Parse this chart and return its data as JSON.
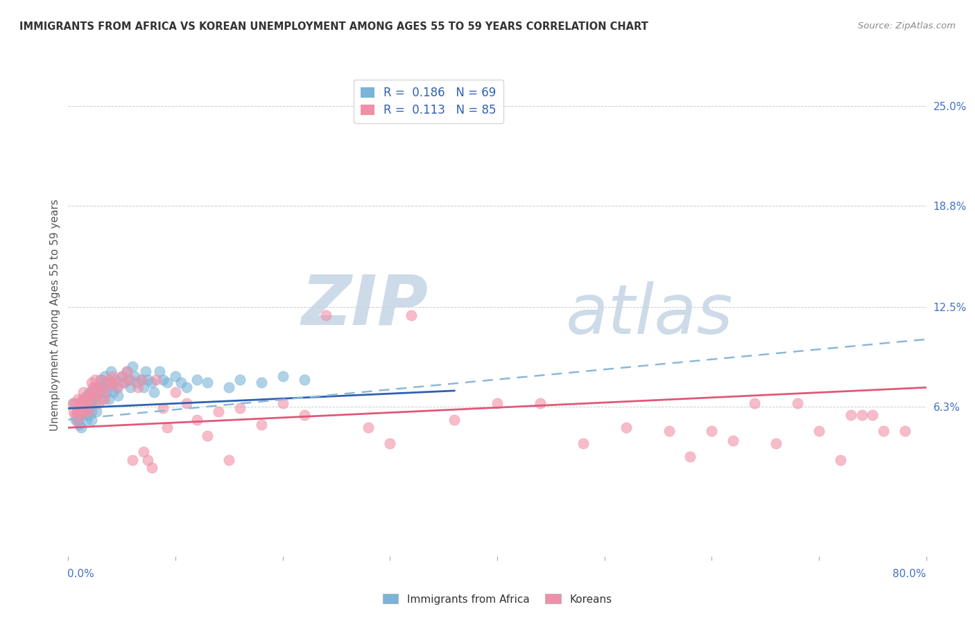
{
  "title": "IMMIGRANTS FROM AFRICA VS KOREAN UNEMPLOYMENT AMONG AGES 55 TO 59 YEARS CORRELATION CHART",
  "source": "Source: ZipAtlas.com",
  "ylabel": "Unemployment Among Ages 55 to 59 years",
  "ytick_labels": [
    "25.0%",
    "18.8%",
    "12.5%",
    "6.3%"
  ],
  "ytick_values": [
    0.25,
    0.188,
    0.125,
    0.063
  ],
  "xlim": [
    0.0,
    0.8
  ],
  "ylim": [
    -0.03,
    0.27
  ],
  "africa_R": 0.186,
  "africa_N": 69,
  "korean_R": 0.113,
  "korean_N": 85,
  "africa_scatter_color": "#7ab4d8",
  "korean_scatter_color": "#f090a8",
  "africa_line_color": "#3060b0",
  "korean_line_color": "#8ab8d8",
  "pink_line_color": "#e05878",
  "watermark_color": "#d0dce8",
  "legend_text_color": "#3060b0",
  "africa_x": [
    0.005,
    0.007,
    0.008,
    0.009,
    0.01,
    0.01,
    0.012,
    0.013,
    0.014,
    0.015,
    0.015,
    0.016,
    0.016,
    0.017,
    0.018,
    0.018,
    0.019,
    0.02,
    0.02,
    0.021,
    0.022,
    0.022,
    0.023,
    0.024,
    0.025,
    0.025,
    0.026,
    0.028,
    0.03,
    0.03,
    0.032,
    0.033,
    0.034,
    0.035,
    0.036,
    0.038,
    0.04,
    0.04,
    0.042,
    0.044,
    0.045,
    0.046,
    0.05,
    0.052,
    0.055,
    0.056,
    0.058,
    0.06,
    0.062,
    0.064,
    0.068,
    0.07,
    0.072,
    0.074,
    0.078,
    0.08,
    0.085,
    0.088,
    0.092,
    0.1,
    0.105,
    0.11,
    0.12,
    0.13,
    0.15,
    0.16,
    0.18,
    0.2,
    0.22
  ],
  "africa_y": [
    0.065,
    0.055,
    0.06,
    0.055,
    0.058,
    0.052,
    0.05,
    0.06,
    0.068,
    0.062,
    0.058,
    0.065,
    0.06,
    0.055,
    0.07,
    0.062,
    0.058,
    0.072,
    0.068,
    0.065,
    0.06,
    0.055,
    0.068,
    0.075,
    0.07,
    0.065,
    0.06,
    0.075,
    0.08,
    0.072,
    0.068,
    0.075,
    0.082,
    0.078,
    0.072,
    0.068,
    0.085,
    0.078,
    0.072,
    0.08,
    0.075,
    0.07,
    0.082,
    0.078,
    0.085,
    0.08,
    0.075,
    0.088,
    0.082,
    0.078,
    0.08,
    0.075,
    0.085,
    0.08,
    0.078,
    0.072,
    0.085,
    0.08,
    0.078,
    0.082,
    0.078,
    0.075,
    0.08,
    0.078,
    0.075,
    0.08,
    0.078,
    0.082,
    0.08
  ],
  "korean_x": [
    0.004,
    0.005,
    0.006,
    0.007,
    0.008,
    0.008,
    0.009,
    0.01,
    0.01,
    0.011,
    0.012,
    0.013,
    0.014,
    0.015,
    0.015,
    0.016,
    0.017,
    0.018,
    0.018,
    0.019,
    0.02,
    0.021,
    0.022,
    0.023,
    0.024,
    0.025,
    0.026,
    0.027,
    0.028,
    0.03,
    0.031,
    0.032,
    0.034,
    0.036,
    0.038,
    0.04,
    0.042,
    0.044,
    0.046,
    0.05,
    0.052,
    0.055,
    0.058,
    0.06,
    0.065,
    0.068,
    0.07,
    0.074,
    0.078,
    0.082,
    0.088,
    0.092,
    0.1,
    0.11,
    0.12,
    0.13,
    0.14,
    0.15,
    0.16,
    0.18,
    0.2,
    0.22,
    0.24,
    0.28,
    0.3,
    0.32,
    0.36,
    0.4,
    0.44,
    0.48,
    0.52,
    0.56,
    0.58,
    0.6,
    0.62,
    0.64,
    0.66,
    0.68,
    0.7,
    0.72,
    0.74,
    0.76,
    0.78,
    0.75,
    0.73
  ],
  "korean_y": [
    0.065,
    0.06,
    0.058,
    0.065,
    0.06,
    0.055,
    0.068,
    0.062,
    0.058,
    0.065,
    0.06,
    0.068,
    0.072,
    0.065,
    0.06,
    0.068,
    0.065,
    0.07,
    0.065,
    0.06,
    0.068,
    0.072,
    0.078,
    0.075,
    0.07,
    0.08,
    0.075,
    0.07,
    0.065,
    0.075,
    0.08,
    0.072,
    0.068,
    0.075,
    0.08,
    0.078,
    0.082,
    0.078,
    0.075,
    0.082,
    0.078,
    0.085,
    0.08,
    0.03,
    0.075,
    0.08,
    0.035,
    0.03,
    0.025,
    0.08,
    0.062,
    0.05,
    0.072,
    0.065,
    0.055,
    0.045,
    0.06,
    0.03,
    0.062,
    0.052,
    0.065,
    0.058,
    0.12,
    0.05,
    0.04,
    0.12,
    0.055,
    0.065,
    0.065,
    0.04,
    0.05,
    0.048,
    0.032,
    0.048,
    0.042,
    0.065,
    0.04,
    0.065,
    0.048,
    0.03,
    0.058,
    0.048,
    0.048,
    0.058,
    0.058
  ]
}
